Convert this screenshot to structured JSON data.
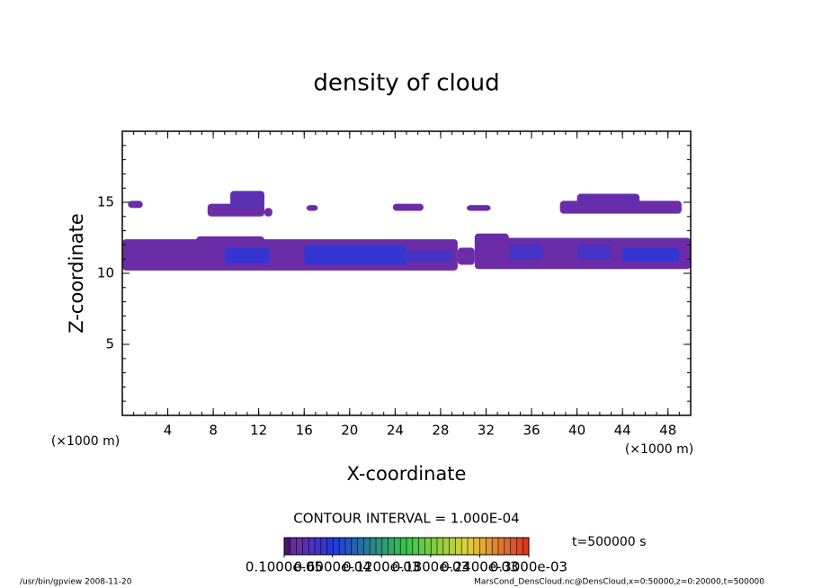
{
  "chart_data": {
    "type": "contour",
    "title": "density of cloud",
    "xlabel": "X-coordinate",
    "ylabel": "Z-coordinate",
    "xunit": "(×1000 m)",
    "yunit": "(×1000 m)",
    "xlim": [
      0,
      50
    ],
    "xticks": [
      4,
      8,
      12,
      16,
      20,
      24,
      28,
      32,
      36,
      40,
      44,
      48
    ],
    "ylim": [
      0,
      20
    ],
    "yticks": [
      5,
      10,
      15
    ],
    "contour_interval": "CONTOUR INTERVAL = 1.000E-04",
    "time": "t=500000 s",
    "colorbar_ticks": [
      {
        "value": 1e-06,
        "label": "0.1000e-05"
      },
      {
        "value": 6e-05,
        "label": "0.6000e-04"
      },
      {
        "value": 0.00012,
        "label": "0.1200e-03"
      },
      {
        "value": 0.00018,
        "label": "0.1800e-03"
      },
      {
        "value": 0.00024,
        "label": "0.2400e-03"
      },
      {
        "value": 0.0003,
        "label": "0.3000e-03"
      }
    ],
    "patches": [
      {
        "x": [
          0,
          29.5
        ],
        "z": [
          10.2,
          12.4
        ],
        "value": 1.5e-05
      },
      {
        "x": [
          29.5,
          31
        ],
        "z": [
          10.6,
          11.8
        ],
        "value": 1.5e-05
      },
      {
        "x": [
          31,
          50
        ],
        "z": [
          10.3,
          12.5
        ],
        "value": 1.5e-05
      },
      {
        "x": [
          6.5,
          12.5
        ],
        "z": [
          12,
          12.6
        ],
        "value": 1.5e-05
      },
      {
        "x": [
          31,
          34
        ],
        "z": [
          12,
          12.8
        ],
        "value": 1.5e-05
      },
      {
        "x": [
          9,
          13
        ],
        "z": [
          10.7,
          11.8
        ],
        "value": 5e-05
      },
      {
        "x": [
          16,
          25
        ],
        "z": [
          10.6,
          12
        ],
        "value": 5e-05
      },
      {
        "x": [
          25,
          29
        ],
        "z": [
          10.8,
          11.6
        ],
        "value": 4e-05
      },
      {
        "x": [
          34,
          37
        ],
        "z": [
          11,
          12
        ],
        "value": 4e-05
      },
      {
        "x": [
          40,
          43
        ],
        "z": [
          11,
          12
        ],
        "value": 4e-05
      },
      {
        "x": [
          44,
          49
        ],
        "z": [
          10.8,
          11.8
        ],
        "value": 5e-05
      },
      {
        "x": [
          0.5,
          1.8
        ],
        "z": [
          14.6,
          15.1
        ],
        "value": 1.5e-05
      },
      {
        "x": [
          7.5,
          12.5
        ],
        "z": [
          14,
          14.9
        ],
        "value": 1.5e-05
      },
      {
        "x": [
          9.5,
          12.5
        ],
        "z": [
          14.6,
          15.8
        ],
        "value": 2.5e-05
      },
      {
        "x": [
          12.5,
          13.2
        ],
        "z": [
          14,
          14.6
        ],
        "value": 1.5e-05
      },
      {
        "x": [
          16.2,
          17.2
        ],
        "z": [
          14.4,
          14.8
        ],
        "value": 1.5e-05
      },
      {
        "x": [
          23.8,
          26.5
        ],
        "z": [
          14.4,
          14.9
        ],
        "value": 1.5e-05
      },
      {
        "x": [
          30.3,
          32.4
        ],
        "z": [
          14.4,
          14.8
        ],
        "value": 1.5e-05
      },
      {
        "x": [
          38.5,
          49.2
        ],
        "z": [
          14.2,
          15.1
        ],
        "value": 1.5e-05
      },
      {
        "x": [
          40,
          45.5
        ],
        "z": [
          14.8,
          15.6
        ],
        "value": 2e-05
      }
    ]
  },
  "footer": {
    "left": "/usr/bin/gpview   2008-11-20",
    "right": "MarsCond_DensCloud.nc@DensCloud,x=0:50000,z=0:20000,t=500000"
  }
}
